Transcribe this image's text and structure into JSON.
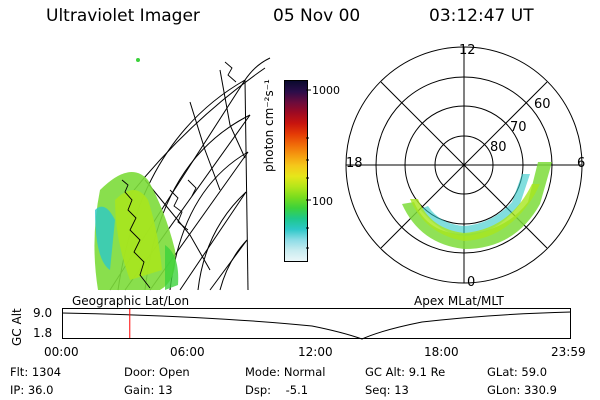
{
  "header": {
    "instrument": "Ultraviolet Imager",
    "date": "05 Nov 00",
    "time": "03:12:47 UT"
  },
  "geo_panel": {
    "label": "Geographic Lat/Lon"
  },
  "mag_panel": {
    "label": "Apex MLat/MLT",
    "mlt_labels": {
      "top": "12",
      "left": "18",
      "right": "6",
      "bottom": "0"
    },
    "lat_labels": [
      "60",
      "70",
      "80"
    ]
  },
  "colorbar": {
    "unit_label": "photon cm⁻²s⁻¹",
    "tick_labels": [
      "1000",
      "100"
    ],
    "colors": [
      "#0a0a2e",
      "#2b0d4a",
      "#6a0b3c",
      "#9e0a22",
      "#c8140e",
      "#e43a06",
      "#f06a08",
      "#f59a10",
      "#f5c81a",
      "#e6e61a",
      "#b4e61a",
      "#78dc1e",
      "#3cd23c",
      "#1ec88c",
      "#2dc8c8",
      "#8cdce6",
      "#c8ecf0",
      "#eaf6f8"
    ]
  },
  "timeline": {
    "y_label": "GC Alt",
    "y_ticks": [
      "9.0",
      "1.8"
    ],
    "x_ticks": [
      "00:00",
      "06:00",
      "12:00",
      "18:00",
      "23:59"
    ],
    "marker_color": "#ff0000",
    "marker_hours": 3.2
  },
  "info": {
    "flt": "Flt: 1304",
    "door": "Door: Open",
    "mode": "Mode: Normal",
    "gc_alt": "GC Alt: 9.1 Re",
    "glat": "GLat: 59.0",
    "ip": "IP: 36.0",
    "gain": "Gain: 13",
    "dsp": "Dsp:    -5.1",
    "seq": "Seq: 13",
    "glon": "GLon: 330.9"
  }
}
